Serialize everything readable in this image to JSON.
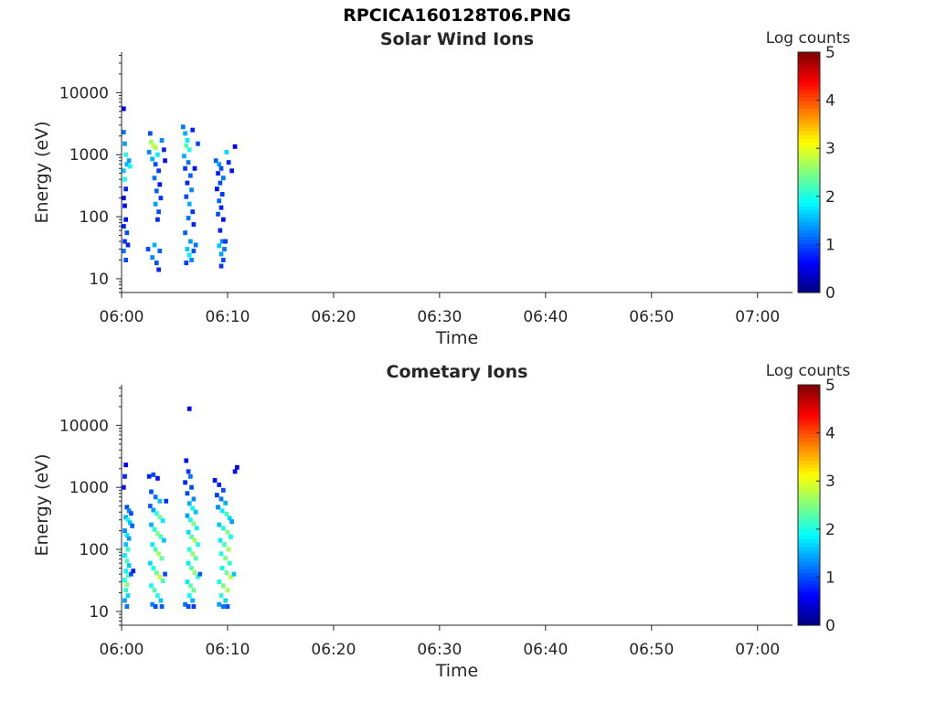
{
  "figure": {
    "title": "RPCICA160128T06.PNG"
  },
  "colorbar": {
    "label": "Log counts",
    "ticks": [
      0,
      1,
      2,
      3,
      4,
      5
    ],
    "range": [
      0,
      5
    ],
    "colormap": "jet"
  },
  "chart_data": [
    {
      "type": "heatmap",
      "title": "Solar Wind Ions",
      "xlabel": "Time",
      "ylabel": "Energy (eV)",
      "x_ticks": [
        "06:00",
        "06:10",
        "06:20",
        "06:30",
        "06:40",
        "06:50",
        "07:00"
      ],
      "y_ticks": [
        10,
        100,
        1000,
        10000
      ],
      "y_scale": "log",
      "ylim": [
        6,
        45000
      ],
      "xlim_minutes": [
        0,
        63.3
      ],
      "color_range": [
        0,
        5
      ],
      "cells": [
        [
          0.0,
          5500,
          0.6
        ],
        [
          0.0,
          2300,
          1.2
        ],
        [
          0.1,
          1500,
          1.4
        ],
        [
          0.2,
          1000,
          2.0
        ],
        [
          0.3,
          700,
          1.5
        ],
        [
          0.0,
          550,
          1.6
        ],
        [
          0.1,
          400,
          2.0
        ],
        [
          0.2,
          280,
          0.8
        ],
        [
          0.0,
          200,
          0.5
        ],
        [
          0.1,
          150,
          0.6
        ],
        [
          0.2,
          90,
          0.7
        ],
        [
          0.0,
          70,
          0.8
        ],
        [
          0.3,
          55,
          1.0
        ],
        [
          0.1,
          40,
          0.9
        ],
        [
          0.0,
          28,
          1.2
        ],
        [
          0.2,
          20,
          1.0
        ],
        [
          0.5,
          800,
          1.4
        ],
        [
          0.6,
          650,
          1.9
        ],
        [
          0.4,
          35,
          0.8
        ],
        [
          2.6,
          1600,
          2.6
        ],
        [
          2.8,
          1400,
          2.9
        ],
        [
          3.0,
          1300,
          2.7
        ],
        [
          2.4,
          1100,
          1.3
        ],
        [
          3.2,
          1000,
          1.8
        ],
        [
          2.7,
          850,
          1.5
        ],
        [
          3.0,
          700,
          1.0
        ],
        [
          3.3,
          550,
          0.9
        ],
        [
          2.9,
          420,
          1.2
        ],
        [
          3.4,
          330,
          0.7
        ],
        [
          3.1,
          260,
          1.1
        ],
        [
          3.5,
          200,
          0.9
        ],
        [
          3.0,
          160,
          1.4
        ],
        [
          3.3,
          120,
          1.0
        ],
        [
          3.2,
          90,
          0.8
        ],
        [
          2.5,
          2200,
          1.0
        ],
        [
          3.6,
          1700,
          1.3
        ],
        [
          3.8,
          1200,
          0.8
        ],
        [
          2.3,
          30,
          1.0
        ],
        [
          2.7,
          22,
          1.3
        ],
        [
          3.1,
          18,
          1.0
        ],
        [
          3.3,
          14,
          0.8
        ],
        [
          2.9,
          35,
          1.5
        ],
        [
          3.4,
          28,
          1.1
        ],
        [
          3.9,
          800,
          0.7
        ],
        [
          5.6,
          2800,
          1.2
        ],
        [
          5.8,
          2200,
          1.5
        ],
        [
          6.0,
          1700,
          1.8
        ],
        [
          5.9,
          1400,
          2.3
        ],
        [
          6.2,
          1200,
          2.0
        ],
        [
          5.7,
          950,
          1.5
        ],
        [
          6.1,
          750,
          1.2
        ],
        [
          5.8,
          600,
          0.9
        ],
        [
          6.3,
          460,
          1.1
        ],
        [
          6.0,
          350,
          0.8
        ],
        [
          6.4,
          270,
          1.3
        ],
        [
          5.9,
          210,
          1.0
        ],
        [
          6.2,
          160,
          1.5
        ],
        [
          6.5,
          120,
          0.9
        ],
        [
          6.1,
          95,
          1.2
        ],
        [
          6.6,
          75,
          0.8
        ],
        [
          5.8,
          55,
          1.1
        ],
        [
          6.3,
          40,
          1.4
        ],
        [
          6.0,
          30,
          1.6
        ],
        [
          6.2,
          24,
          1.8
        ],
        [
          6.4,
          20,
          1.3
        ],
        [
          6.6,
          28,
          1.0
        ],
        [
          5.9,
          18,
          0.9
        ],
        [
          6.8,
          35,
          1.2
        ],
        [
          6.5,
          2500,
          0.8
        ],
        [
          7.0,
          1500,
          1.0
        ],
        [
          6.7,
          600,
          0.7
        ],
        [
          8.7,
          800,
          1.1
        ],
        [
          9.0,
          700,
          1.4
        ],
        [
          9.2,
          600,
          1.0
        ],
        [
          8.9,
          500,
          0.8
        ],
        [
          9.4,
          420,
          1.2
        ],
        [
          9.1,
          350,
          1.0
        ],
        [
          8.8,
          280,
          0.7
        ],
        [
          9.3,
          230,
          0.9
        ],
        [
          9.0,
          180,
          1.1
        ],
        [
          9.2,
          140,
          0.8
        ],
        [
          8.9,
          110,
          1.0
        ],
        [
          9.4,
          90,
          0.7
        ],
        [
          9.1,
          60,
          0.8
        ],
        [
          9.3,
          40,
          1.3
        ],
        [
          9.0,
          34,
          1.6
        ],
        [
          9.5,
          30,
          1.2
        ],
        [
          9.2,
          25,
          1.4
        ],
        [
          9.4,
          20,
          1.0
        ],
        [
          9.6,
          40,
          0.9
        ],
        [
          9.7,
          1100,
          1.7
        ],
        [
          9.9,
          750,
          0.8
        ],
        [
          10.2,
          550,
          0.7
        ],
        [
          10.5,
          1350,
          0.6
        ],
        [
          9.2,
          16,
          0.9
        ]
      ]
    },
    {
      "type": "heatmap",
      "title": "Cometary Ions",
      "xlabel": "Time",
      "ylabel": "Energy (eV)",
      "x_ticks": [
        "06:00",
        "06:10",
        "06:20",
        "06:30",
        "06:40",
        "06:50",
        "07:00"
      ],
      "y_ticks": [
        10,
        100,
        1000,
        10000
      ],
      "y_scale": "log",
      "ylim": [
        6,
        45000
      ],
      "xlim_minutes": [
        0,
        63.3
      ],
      "color_range": [
        0,
        5
      ],
      "cells": [
        [
          0.2,
          2300,
          0.6
        ],
        [
          0.1,
          1500,
          0.8
        ],
        [
          0.0,
          1000,
          0.7
        ],
        [
          0.3,
          480,
          1.0
        ],
        [
          0.5,
          420,
          1.3
        ],
        [
          0.7,
          380,
          1.0
        ],
        [
          0.2,
          330,
          1.5
        ],
        [
          0.4,
          300,
          2.0
        ],
        [
          0.6,
          270,
          1.6
        ],
        [
          0.8,
          240,
          1.1
        ],
        [
          0.1,
          200,
          1.3
        ],
        [
          0.3,
          170,
          1.8
        ],
        [
          0.5,
          150,
          1.4
        ],
        [
          0.2,
          120,
          1.6
        ],
        [
          0.4,
          100,
          2.1
        ],
        [
          0.1,
          80,
          1.8
        ],
        [
          0.3,
          65,
          2.2
        ],
        [
          0.5,
          55,
          1.6
        ],
        [
          0.2,
          45,
          1.9
        ],
        [
          0.4,
          38,
          2.3
        ],
        [
          0.7,
          40,
          1.0
        ],
        [
          0.1,
          32,
          2.0
        ],
        [
          0.3,
          27,
          2.5
        ],
        [
          0.2,
          22,
          2.1
        ],
        [
          0.4,
          18,
          1.7
        ],
        [
          0.1,
          15,
          1.4
        ],
        [
          0.3,
          12,
          1.2
        ],
        [
          0.9,
          45,
          0.8
        ],
        [
          2.4,
          1500,
          0.8
        ],
        [
          2.8,
          1600,
          1.0
        ],
        [
          3.2,
          1400,
          0.7
        ],
        [
          2.6,
          850,
          1.0
        ],
        [
          3.0,
          700,
          1.2
        ],
        [
          3.4,
          600,
          1.6
        ],
        [
          2.5,
          500,
          1.1
        ],
        [
          2.8,
          430,
          1.4
        ],
        [
          3.1,
          380,
          2.0
        ],
        [
          3.4,
          330,
          2.4
        ],
        [
          3.7,
          290,
          1.8
        ],
        [
          2.6,
          250,
          1.5
        ],
        [
          2.9,
          210,
          2.0
        ],
        [
          3.2,
          180,
          2.5
        ],
        [
          3.5,
          160,
          2.2
        ],
        [
          3.8,
          140,
          1.6
        ],
        [
          2.7,
          120,
          1.8
        ],
        [
          3.0,
          100,
          2.2
        ],
        [
          3.3,
          85,
          2.7
        ],
        [
          3.6,
          72,
          2.3
        ],
        [
          2.5,
          60,
          1.7
        ],
        [
          2.8,
          50,
          2.0
        ],
        [
          3.1,
          42,
          2.4
        ],
        [
          3.4,
          36,
          2.9
        ],
        [
          3.7,
          31,
          2.2
        ],
        [
          2.6,
          26,
          1.9
        ],
        [
          2.9,
          22,
          2.3
        ],
        [
          3.2,
          18,
          2.0
        ],
        [
          3.5,
          15,
          1.6
        ],
        [
          2.7,
          13,
          1.3
        ],
        [
          3.0,
          12,
          1.0
        ],
        [
          3.6,
          12,
          1.1
        ],
        [
          3.9,
          40,
          1.0
        ],
        [
          4.0,
          600,
          0.9
        ],
        [
          5.9,
          2700,
          0.7
        ],
        [
          6.1,
          1800,
          0.9
        ],
        [
          6.3,
          1500,
          1.2
        ],
        [
          5.8,
          1200,
          0.8
        ],
        [
          6.4,
          1000,
          1.0
        ],
        [
          6.0,
          800,
          1.0
        ],
        [
          6.6,
          650,
          1.3
        ],
        [
          6.2,
          550,
          1.5
        ],
        [
          6.5,
          460,
          1.9
        ],
        [
          6.8,
          400,
          1.6
        ],
        [
          6.0,
          350,
          1.4
        ],
        [
          6.3,
          300,
          2.0
        ],
        [
          6.6,
          260,
          2.5
        ],
        [
          6.9,
          220,
          1.9
        ],
        [
          6.1,
          190,
          1.7
        ],
        [
          6.4,
          160,
          2.3
        ],
        [
          6.7,
          140,
          2.7
        ],
        [
          7.0,
          120,
          2.0
        ],
        [
          6.2,
          100,
          2.0
        ],
        [
          6.5,
          85,
          2.6
        ],
        [
          6.8,
          72,
          2.3
        ],
        [
          6.1,
          60,
          1.8
        ],
        [
          6.4,
          50,
          2.3
        ],
        [
          6.7,
          42,
          2.6
        ],
        [
          7.0,
          36,
          2.1
        ],
        [
          6.0,
          30,
          1.8
        ],
        [
          6.3,
          26,
          2.3
        ],
        [
          6.6,
          22,
          2.4
        ],
        [
          6.2,
          18,
          1.9
        ],
        [
          6.5,
          15,
          1.5
        ],
        [
          5.8,
          13,
          1.2
        ],
        [
          6.1,
          12,
          1.0
        ],
        [
          6.6,
          12,
          0.9
        ],
        [
          6.2,
          18500,
          0.6
        ],
        [
          7.2,
          40,
          1.1
        ],
        [
          8.6,
          1300,
          0.7
        ],
        [
          9.0,
          1100,
          0.8
        ],
        [
          9.4,
          900,
          1.0
        ],
        [
          8.8,
          750,
          0.9
        ],
        [
          9.2,
          650,
          1.2
        ],
        [
          9.6,
          560,
          1.5
        ],
        [
          8.9,
          480,
          1.3
        ],
        [
          9.3,
          420,
          1.8
        ],
        [
          9.7,
          370,
          2.2
        ],
        [
          10.0,
          320,
          1.7
        ],
        [
          10.2,
          280,
          1.4
        ],
        [
          9.0,
          250,
          1.6
        ],
        [
          9.4,
          220,
          2.0
        ],
        [
          9.8,
          190,
          2.5
        ],
        [
          10.1,
          160,
          1.9
        ],
        [
          9.1,
          140,
          1.8
        ],
        [
          9.5,
          120,
          2.2
        ],
        [
          9.9,
          100,
          2.7
        ],
        [
          9.2,
          85,
          2.0
        ],
        [
          9.6,
          72,
          2.5
        ],
        [
          10.0,
          60,
          2.1
        ],
        [
          9.3,
          50,
          1.9
        ],
        [
          9.7,
          42,
          2.4
        ],
        [
          10.1,
          36,
          2.8
        ],
        [
          10.4,
          40,
          1.6
        ],
        [
          9.0,
          30,
          2.0
        ],
        [
          9.4,
          26,
          2.5
        ],
        [
          9.8,
          22,
          2.7
        ],
        [
          9.2,
          18,
          2.1
        ],
        [
          9.6,
          15,
          1.7
        ],
        [
          9.0,
          13,
          1.4
        ],
        [
          9.4,
          12,
          1.2
        ],
        [
          9.8,
          12,
          1.0
        ],
        [
          10.5,
          1800,
          0.7
        ],
        [
          10.7,
          2100,
          0.6
        ]
      ]
    }
  ]
}
